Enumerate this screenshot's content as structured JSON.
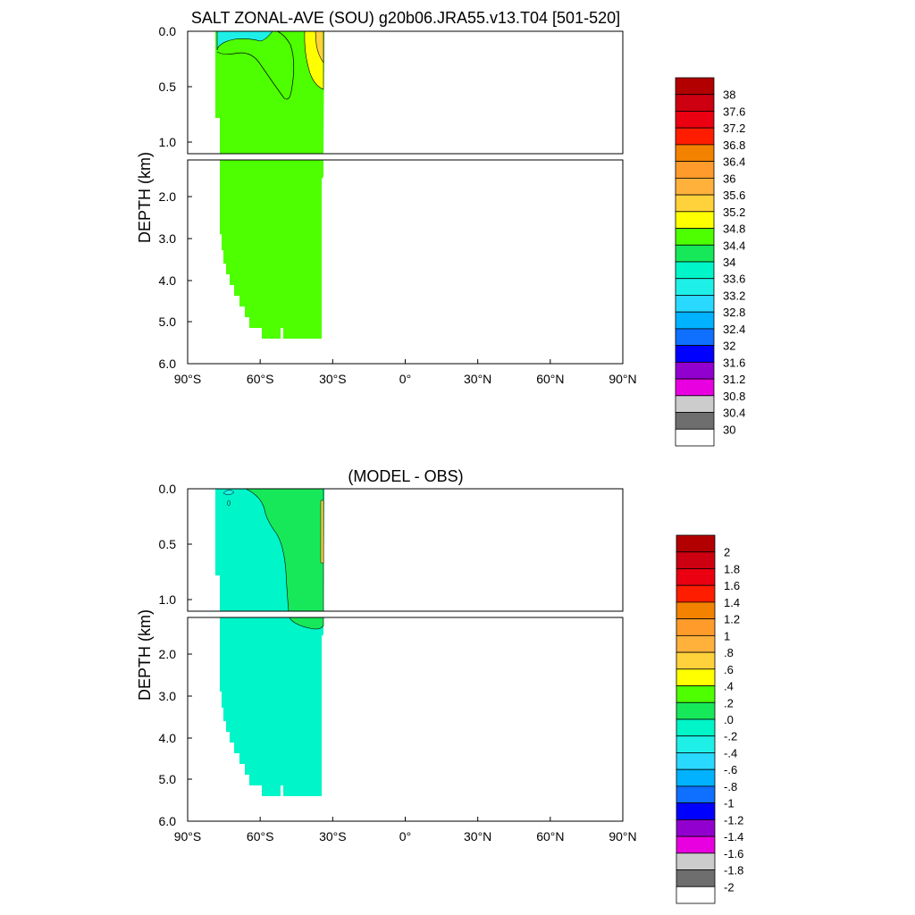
{
  "chart_data": [
    {
      "type": "contour",
      "title": "SALT ZONAL-AVE (SOU) g20b06.JRA55.v13.T04 [501-520]",
      "ylabel": "DEPTH (km)",
      "xlim": [
        -90,
        90
      ],
      "ylim": [
        0,
        6
      ],
      "y_inverted": true,
      "y_break_km": 1.1,
      "x_ticks": [
        {
          "value": -90,
          "label": "90°S"
        },
        {
          "value": -60,
          "label": "60°S"
        },
        {
          "value": -30,
          "label": "30°S"
        },
        {
          "value": 0,
          "label": "0°"
        },
        {
          "value": 30,
          "label": "30°N"
        },
        {
          "value": 60,
          "label": "60°N"
        },
        {
          "value": 90,
          "label": "90°N"
        }
      ],
      "y_ticks_upper": [
        "0.0",
        "0.5",
        "1.0"
      ],
      "y_ticks_lower": [
        "2.0",
        "3.0",
        "4.0",
        "5.0",
        "6.0"
      ],
      "colorbar": {
        "levels": [
          "38",
          "37.6",
          "37.2",
          "36.8",
          "36.4",
          "36",
          "35.6",
          "35.2",
          "34.8",
          "34.4",
          "34",
          "33.6",
          "33.2",
          "32.8",
          "32.4",
          "32",
          "31.6",
          "31.2",
          "30.8",
          "30.4",
          "30"
        ],
        "colors": [
          "#b20000",
          "#cc0010",
          "#ea0010",
          "#ff1d00",
          "#f28200",
          "#ff9b2a",
          "#ffb13c",
          "#ffd23c",
          "#ffff00",
          "#4dff00",
          "#17e85a",
          "#00f5c8",
          "#1ef0e8",
          "#2ad9ff",
          "#00b2ff",
          "#0f6fff",
          "#0000ff",
          "#9200d0",
          "#e800e0",
          "#cccccc",
          "#6e6e6e",
          "#ffffff"
        ]
      },
      "field_colors": {
        "main": "#4dff00",
        "surface_fresh": "#1ef0e8",
        "subtropical_salty": "#ffff00",
        "subtropical_core": "#ffd23c"
      }
    },
    {
      "type": "contour",
      "title": "(MODEL - OBS)",
      "ylabel": "DEPTH (km)",
      "xlim": [
        -90,
        90
      ],
      "ylim": [
        0,
        6
      ],
      "y_inverted": true,
      "y_break_km": 1.1,
      "x_ticks": [
        {
          "value": -90,
          "label": "90°S"
        },
        {
          "value": -60,
          "label": "60°S"
        },
        {
          "value": -30,
          "label": "30°S"
        },
        {
          "value": 0,
          "label": "0°"
        },
        {
          "value": 30,
          "label": "30°N"
        },
        {
          "value": 60,
          "label": "60°N"
        },
        {
          "value": 90,
          "label": "90°N"
        }
      ],
      "y_ticks_upper": [
        "0.0",
        "0.5",
        "1.0"
      ],
      "y_ticks_lower": [
        "2.0",
        "3.0",
        "4.0",
        "5.0",
        "6.0"
      ],
      "colorbar": {
        "levels": [
          "2",
          "1.8",
          "1.6",
          "1.4",
          "1.2",
          "1",
          ".8",
          ".6",
          ".4",
          ".2",
          ".0",
          "-.2",
          "-.4",
          "-.6",
          "-.8",
          "-1",
          "-1.2",
          "-1.4",
          "-1.6",
          "-1.8",
          "-2"
        ],
        "colors": [
          "#b20000",
          "#cc0010",
          "#ea0010",
          "#ff1d00",
          "#f28200",
          "#ff9b2a",
          "#ffb13c",
          "#ffd23c",
          "#ffff00",
          "#4dff00",
          "#17e85a",
          "#00f5c8",
          "#1ef0e8",
          "#2ad9ff",
          "#00b2ff",
          "#0f6fff",
          "#0000ff",
          "#9200d0",
          "#e800e0",
          "#cccccc",
          "#6e6e6e",
          "#ffffff"
        ]
      },
      "field_colors": {
        "main": "#00f5c8",
        "positive_band": "#17e85a",
        "coastal": "#ffd23c"
      }
    }
  ]
}
